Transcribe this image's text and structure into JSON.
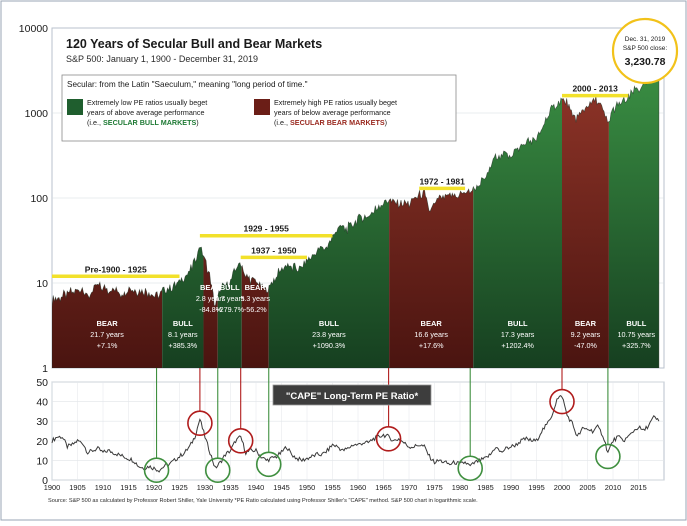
{
  "title": "120 Years of Secular Bull and Bear Markets",
  "subtitle": "S&P 500: January 1, 1900 - December 31, 2019",
  "definition": "Secular: from the Latin \"Saeculum,\" meaning \"long period of time.\"",
  "legend": {
    "bull_text_1": "Extremely low PE ratios usually beget",
    "bull_text_2": "years of above average performance",
    "bull_text_3_pre": "(i.e., ",
    "bull_text_3_key": "SECULAR BULL MARKETS",
    "bull_text_3_post": ")",
    "bear_text_1": "Extremely high PE ratios usually beget",
    "bear_text_2": "years of below average performance",
    "bear_text_3_pre": "(i.e., ",
    "bear_text_3_key": "SECULAR BEAR MARKETS",
    "bear_text_3_post": ")"
  },
  "callout": {
    "line1": "Dec. 31, 2019",
    "line2": "S&P 500 close:",
    "value": "3,230.78"
  },
  "cape_label": "\"CAPE\" Long-Term PE Ratio*",
  "footnote": "Source: S&P 500 as calculated by Professor Robert Shiller, Yale University  *PE Ratio calculated using Professor Shiller's \"CAPE\" method. S&P 500 chart in logarithmic scale.",
  "colors": {
    "bull": "#1f5e2e",
    "bull_light": "#3f9a48",
    "bear": "#6b1e17",
    "bear_light": "#9a3a2c",
    "highlight_yellow": "#f2e12a",
    "circle_red": "#b01c1c",
    "circle_green": "#3f8f3f"
  },
  "chart_data": [
    {
      "type": "area",
      "scale": "log",
      "y_ticks": [
        "1",
        "10",
        "100",
        "1000",
        "10000"
      ],
      "ylim": [
        1,
        10000
      ],
      "xlim": [
        1900,
        2020
      ],
      "x": [
        1900,
        1902,
        1905,
        1906,
        1907,
        1909,
        1910,
        1914,
        1915,
        1917,
        1919,
        1920,
        1921,
        1922,
        1924,
        1926,
        1927,
        1928,
        1929,
        1930,
        1931,
        1932,
        1933,
        1935,
        1936,
        1937,
        1938,
        1940,
        1942,
        1944,
        1946,
        1947,
        1949,
        1950,
        1952,
        1954,
        1956,
        1958,
        1960,
        1962,
        1964,
        1966,
        1967,
        1970,
        1972,
        1973,
        1974,
        1976,
        1980,
        1982,
        1985,
        1987,
        1990,
        1993,
        1995,
        1997,
        1999,
        2000,
        2001,
        2002,
        2003,
        2005,
        2007,
        2009,
        2010,
        2012,
        2013,
        2014,
        2016,
        2018,
        2019
      ],
      "y": [
        6.1,
        7,
        8.5,
        9,
        6.8,
        9.8,
        8.8,
        7.5,
        8.7,
        8,
        7.8,
        7,
        7.2,
        8.4,
        9.2,
        11.5,
        13.5,
        18,
        28,
        19,
        11.5,
        5.2,
        8.5,
        10,
        14.5,
        17,
        11.5,
        10.5,
        8,
        12,
        17,
        15,
        15,
        18,
        24,
        27,
        45,
        44,
        57,
        60,
        80,
        93,
        90,
        85,
        110,
        115,
        70,
        100,
        110,
        120,
        165,
        320,
        330,
        450,
        480,
        880,
        1300,
        1450,
        1300,
        880,
        900,
        1200,
        1450,
        740,
        1100,
        1350,
        1480,
        1800,
        2100,
        2600,
        3230
      ],
      "periods": [
        {
          "type": "BEAR",
          "start": 1900,
          "end": 1921.6,
          "years": "21.7 years",
          "return": "+7.1%",
          "label": "Pre-1900 - 1925"
        },
        {
          "type": "BULL",
          "start": 1921.6,
          "end": 1929.7,
          "years": "8.1 years",
          "return": "+385.3%"
        },
        {
          "type": "BEAR",
          "start": 1929.7,
          "end": 1932.5,
          "years": "2.8 years",
          "return": "-84.8%"
        },
        {
          "type": "BULL",
          "start": 1932.5,
          "end": 1937.2,
          "years": "4.7 years",
          "return": "+279.7%"
        },
        {
          "type": "BEAR",
          "start": 1937.2,
          "end": 1942.5,
          "years": "5.3 years",
          "return": "-56.2%"
        },
        {
          "type": "BULL",
          "start": 1942.5,
          "end": 1966.1,
          "years": "23.8 years",
          "return": "+1090.3%"
        },
        {
          "type": "BEAR",
          "start": 1966.1,
          "end": 1982.6,
          "years": "16.6 years",
          "return": "+17.6%"
        },
        {
          "type": "BULL",
          "start": 1982.6,
          "end": 2000.0,
          "years": "17.3 years",
          "return": "+1202.4%"
        },
        {
          "type": "BEAR",
          "start": 2000.0,
          "end": 2009.2,
          "years": "9.2 years",
          "return": "-47.0%"
        },
        {
          "type": "BULL",
          "start": 2009.2,
          "end": 2019.95,
          "years": "10.75 years",
          "return": "+325.7%"
        }
      ],
      "bracket_labels": [
        {
          "text": "Pre-1900 - 1925",
          "start": 1900,
          "end": 1925,
          "y": 12
        },
        {
          "text": "1929 - 1955",
          "start": 1929,
          "end": 1955,
          "y": 36
        },
        {
          "text": "1937 - 1950",
          "start": 1937,
          "end": 1950,
          "y": 20
        },
        {
          "text": "1972 - 1981",
          "start": 1972,
          "end": 1981,
          "y": 130
        },
        {
          "text": "2000 - 2013",
          "start": 2000,
          "end": 2013,
          "y": 1600
        }
      ]
    },
    {
      "type": "line",
      "title": "\"CAPE\" Long-Term PE Ratio*",
      "y_ticks": [
        "0",
        "10",
        "20",
        "30",
        "40",
        "50"
      ],
      "ylim": [
        0,
        50
      ],
      "x_ticks": [
        "1900",
        "1905",
        "1910",
        "1915",
        "1920",
        "1925",
        "1930",
        "1935",
        "1940",
        "1945",
        "1950",
        "1955",
        "1960",
        "1965",
        "1970",
        "1975",
        "1980",
        "1985",
        "1990",
        "1995",
        "2000",
        "2005",
        "2010",
        "2015"
      ],
      "xlim": [
        1900,
        2020
      ],
      "x": [
        1900,
        1901,
        1902,
        1903,
        1904,
        1905,
        1906,
        1907,
        1908,
        1909,
        1910,
        1911,
        1912,
        1913,
        1914,
        1915,
        1916,
        1917,
        1918,
        1919,
        1920,
        1921,
        1922,
        1923,
        1924,
        1925,
        1926,
        1927,
        1928,
        1929,
        1930,
        1931,
        1932,
        1933,
        1934,
        1935,
        1936,
        1937,
        1938,
        1939,
        1940,
        1941,
        1942,
        1943,
        1944,
        1945,
        1946,
        1947,
        1948,
        1949,
        1950,
        1951,
        1952,
        1953,
        1954,
        1955,
        1956,
        1957,
        1958,
        1959,
        1960,
        1961,
        1962,
        1963,
        1964,
        1965,
        1966,
        1967,
        1968,
        1969,
        1970,
        1971,
        1972,
        1973,
        1974,
        1975,
        1976,
        1977,
        1978,
        1979,
        1980,
        1981,
        1982,
        1983,
        1984,
        1985,
        1986,
        1987,
        1988,
        1989,
        1990,
        1991,
        1992,
        1993,
        1994,
        1995,
        1996,
        1997,
        1998,
        1999,
        2000,
        2001,
        2002,
        2003,
        2004,
        2005,
        2006,
        2007,
        2008,
        2009,
        2010,
        2011,
        2012,
        2013,
        2014,
        2015,
        2016,
        2017,
        2018,
        2019
      ],
      "y": [
        20,
        22,
        22,
        17,
        18,
        20,
        19,
        14,
        15,
        16,
        14,
        15,
        14,
        13,
        12,
        11,
        10,
        7,
        6,
        7,
        6,
        5,
        7,
        8,
        10,
        12,
        14,
        17,
        22,
        31,
        22,
        14,
        6,
        9,
        13,
        15,
        20,
        22,
        14,
        15,
        15,
        12,
        10,
        11,
        12,
        14,
        17,
        13,
        11,
        10,
        11,
        12,
        13,
        13,
        15,
        18,
        17,
        15,
        16,
        18,
        18,
        19,
        19,
        21,
        22,
        23,
        22,
        20,
        21,
        19,
        17,
        17,
        18,
        17,
        12,
        9,
        10,
        9,
        8,
        9,
        8,
        9,
        7,
        9,
        10,
        11,
        13,
        17,
        14,
        16,
        17,
        18,
        20,
        21,
        20,
        20,
        25,
        28,
        33,
        41,
        43,
        33,
        29,
        22,
        26,
        26,
        25,
        27,
        23,
        14,
        20,
        22,
        20,
        22,
        25,
        27,
        25,
        28,
        32,
        30
      ],
      "circles": [
        {
          "year": 1920.5,
          "value": 5,
          "kind": "low"
        },
        {
          "year": 1929,
          "value": 29,
          "kind": "high"
        },
        {
          "year": 1932.5,
          "value": 5,
          "kind": "low"
        },
        {
          "year": 1937,
          "value": 20,
          "kind": "high"
        },
        {
          "year": 1942.5,
          "value": 8,
          "kind": "low"
        },
        {
          "year": 1966,
          "value": 21,
          "kind": "high"
        },
        {
          "year": 1982,
          "value": 6,
          "kind": "low"
        },
        {
          "year": 2000,
          "value": 40,
          "kind": "high"
        },
        {
          "year": 2009,
          "value": 12,
          "kind": "low"
        }
      ]
    }
  ]
}
